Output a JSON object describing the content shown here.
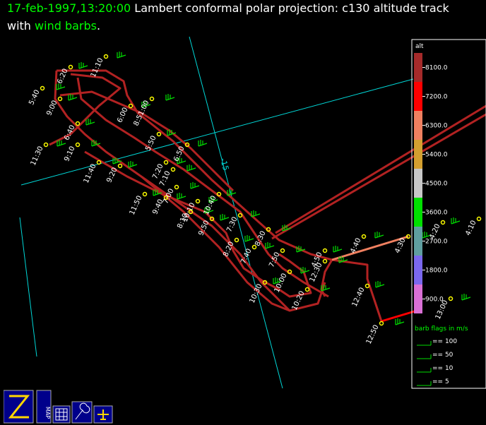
{
  "title": {
    "line1": {
      "time": "17-feb-1997,13:20:00",
      "text": " Lambert conformal polar projection:  c130 altitude track"
    },
    "line2": {
      "pre": "with ",
      "highlight": "wind barbs",
      "post": "."
    }
  },
  "grid_label": "-15",
  "track_labels": [
    "6:20",
    "11:10",
    "5:40",
    "9:00",
    "6:00",
    "8:51:00",
    "6:40",
    "11:30",
    "9:10",
    "5:50",
    "6:50",
    "11:40",
    "9:20",
    "7:20",
    "7:10",
    "11:50",
    "9:40",
    "7:00",
    "10:40",
    "10:10",
    "8:10",
    "9:50",
    "7:30",
    "8:30",
    "8:20",
    "7:40",
    "7:50",
    "10:30",
    "10:00",
    "12:30",
    "4:50",
    "4:40",
    "4:30",
    "4:20",
    "4:10",
    "10:20",
    "12:40",
    "13:00",
    "12:50"
  ],
  "colorbar": {
    "label": "alt",
    "ticks": [
      {
        "value": 8100,
        "label": "8100.0"
      },
      {
        "value": 7200,
        "label": "7200.0"
      },
      {
        "value": 6300,
        "label": "6300.0"
      },
      {
        "value": 5400,
        "label": "5400.0"
      },
      {
        "value": 4500,
        "label": "4500.0"
      },
      {
        "value": 3600,
        "label": "3600.0"
      },
      {
        "value": 2700,
        "label": "2700.0"
      },
      {
        "value": 1800,
        "label": "1800.0"
      },
      {
        "value": 900,
        "label": "900.0"
      }
    ],
    "colors": [
      "#a52a2a",
      "#ff0000",
      "#f08060",
      "#d4a030",
      "#c8c8c8",
      "#00e000",
      "#5f9ea0",
      "#7b68ee",
      "#da70d6"
    ]
  },
  "barb_legend": {
    "title": "barb flags in m/s",
    "entries": [
      "== 100",
      "== 50",
      "== 10",
      "== 5"
    ]
  },
  "toolbar": {
    "map_label": "MAP"
  }
}
